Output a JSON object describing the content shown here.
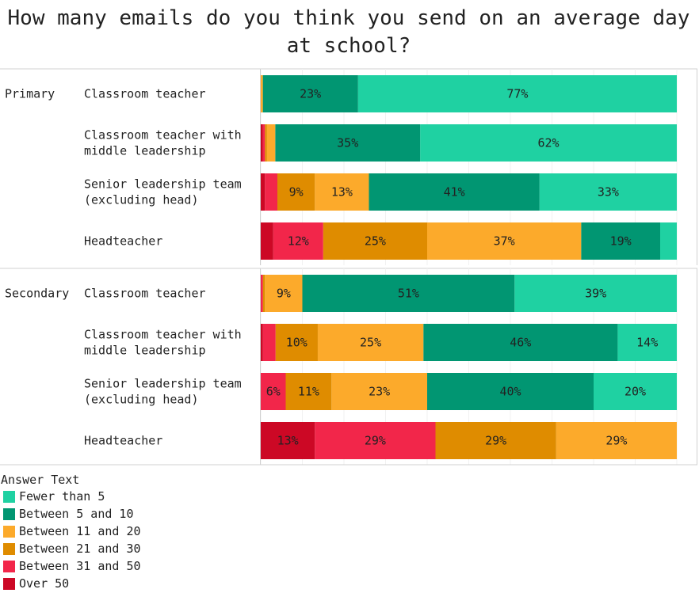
{
  "chart_data": {
    "type": "bar",
    "orientation": "horizontal",
    "stacked": true,
    "title": "How many emails do you think you send on an average day at school?",
    "legend_title": "Answer Text",
    "legend_position": "bottom-left",
    "grid": true,
    "xlim": [
      0,
      100
    ],
    "groups": [
      {
        "name": "Primary",
        "rows": [
          {
            "label": "Classroom teacher",
            "values": [
              77,
              23,
              0.5,
              0,
              0,
              0
            ]
          },
          {
            "label": "Classroom teacher with middle leadership",
            "values": [
              62,
              35,
              2,
              0.5,
              0.5,
              0.5
            ]
          },
          {
            "label": "Senior leadership team (excluding head)",
            "values": [
              33,
              41,
              13,
              9,
              3,
              1
            ]
          },
          {
            "label": "Headteacher",
            "values": [
              4,
              19,
              37,
              25,
              12,
              3
            ]
          }
        ]
      },
      {
        "name": "Secondary",
        "rows": [
          {
            "label": "Classroom teacher",
            "values": [
              39,
              51,
              9,
              0.5,
              0.5,
              0
            ]
          },
          {
            "label": "Classroom teacher with middle leadership",
            "values": [
              14,
              46,
              25,
              10,
              3,
              0.5
            ]
          },
          {
            "label": "Senior leadership team (excluding head)",
            "values": [
              20,
              40,
              23,
              11,
              6,
              0
            ]
          },
          {
            "label": "Headteacher",
            "values": [
              0,
              0,
              29,
              29,
              29,
              13
            ]
          }
        ]
      }
    ],
    "series": [
      {
        "name": "Fewer than 5",
        "color": "#1fd1a2"
      },
      {
        "name": "Between 5 and 10",
        "color": "#019672"
      },
      {
        "name": "Between 11 and 20",
        "color": "#fcaa2b"
      },
      {
        "name": "Between 21 and 30",
        "color": "#df8c00"
      },
      {
        "name": "Between 31 and 50",
        "color": "#f2264a"
      },
      {
        "name": "Over 50",
        "color": "#cc0825"
      }
    ],
    "label_threshold": 5
  }
}
